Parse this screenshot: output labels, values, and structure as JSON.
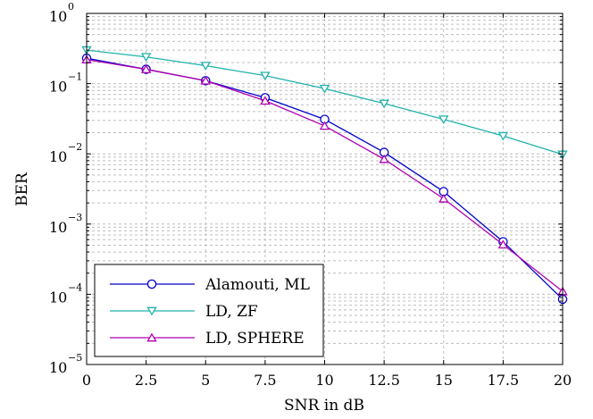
{
  "chart_data": {
    "type": "line",
    "title": "",
    "xlabel": "SNR in dB",
    "ylabel": "BER",
    "xscale": "linear",
    "yscale": "log",
    "xlim": [
      0,
      20
    ],
    "ylim": [
      1e-05,
      1
    ],
    "grid": true,
    "legend_position": "bottom-left",
    "x": [
      0,
      2.5,
      5,
      7.5,
      10,
      12.5,
      15,
      17.5,
      20
    ],
    "x_tick_labels": [
      "0",
      "2.5",
      "5",
      "7.5",
      "10",
      "12.5",
      "15",
      "17.5",
      "20"
    ],
    "y_ticks": [
      {
        "base": "10",
        "exp": "0",
        "value": 1
      },
      {
        "base": "10",
        "exp": "−1",
        "value": 0.1
      },
      {
        "base": "10",
        "exp": "−2",
        "value": 0.01
      },
      {
        "base": "10",
        "exp": "−3",
        "value": 0.001
      },
      {
        "base": "10",
        "exp": "−4",
        "value": 0.0001
      },
      {
        "base": "10",
        "exp": "−5",
        "value": 1e-05
      }
    ],
    "series": [
      {
        "name": "Alamouti, ML",
        "color": "#0000cc",
        "marker": "circle",
        "values": [
          0.23,
          0.16,
          0.11,
          0.063,
          0.031,
          0.0105,
          0.0029,
          0.00056,
          8.5e-05
        ]
      },
      {
        "name": "LD, ZF",
        "color": "#20b2aa",
        "marker": "triangle-down",
        "values": [
          0.3,
          0.24,
          0.18,
          0.13,
          0.085,
          0.052,
          0.031,
          0.018,
          0.0098
        ]
      },
      {
        "name": "LD, SPHERE",
        "color": "#b000b0",
        "marker": "triangle-up",
        "values": [
          0.22,
          0.16,
          0.11,
          0.057,
          0.025,
          0.0084,
          0.0023,
          0.00051,
          0.00011
        ]
      }
    ]
  }
}
